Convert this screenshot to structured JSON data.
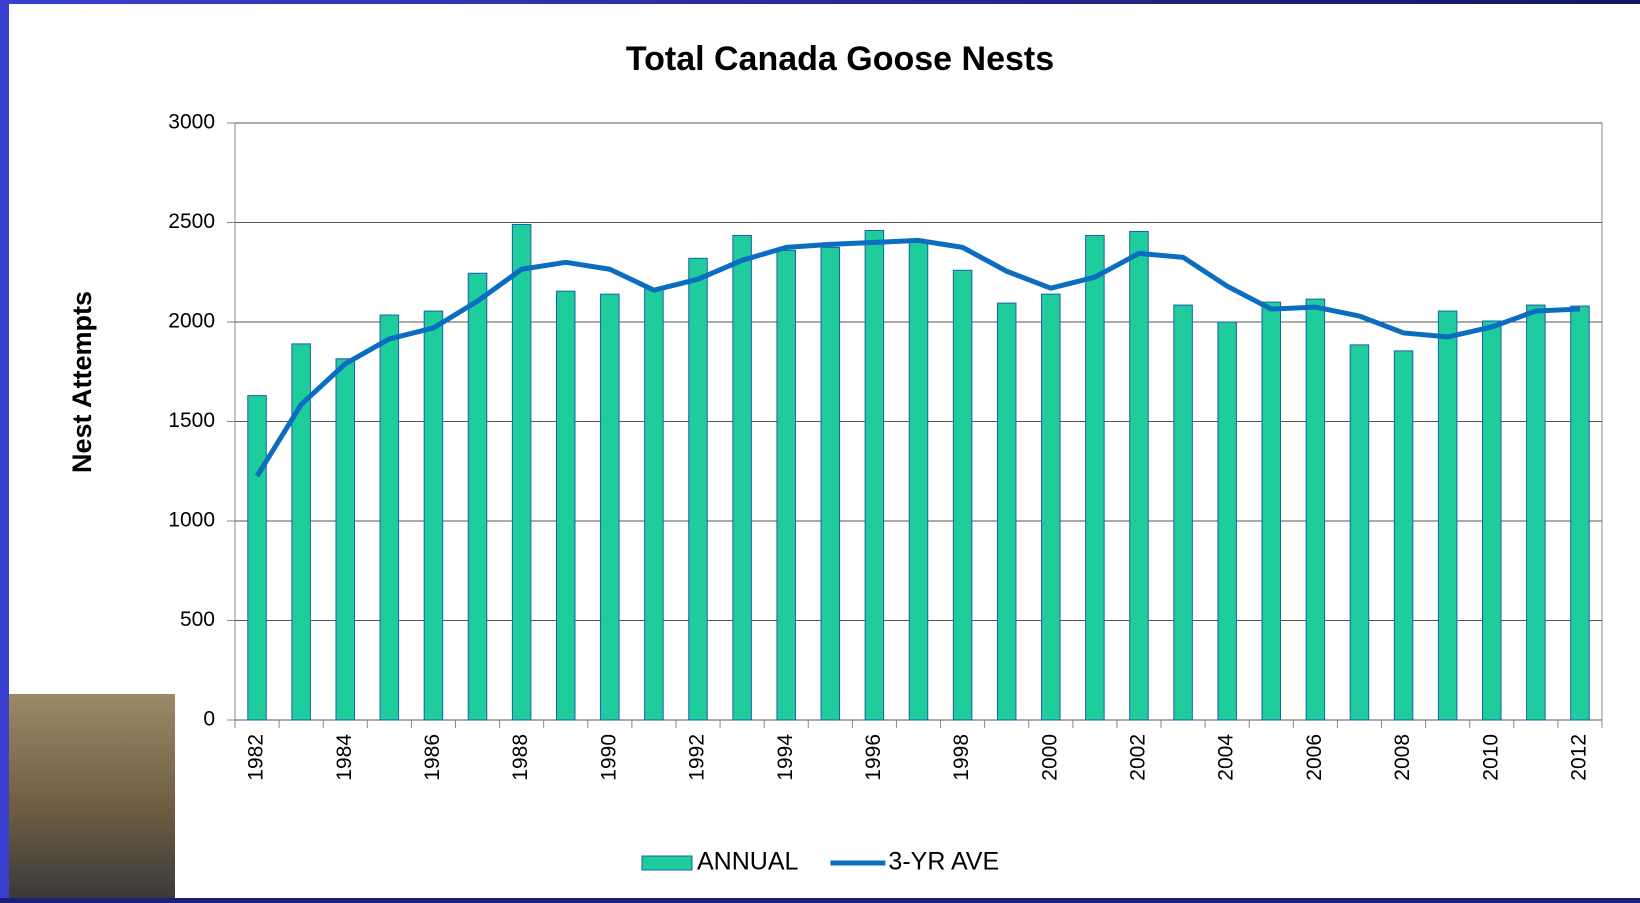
{
  "chart_data": {
    "type": "bar",
    "title": "Total Canada Goose Nests",
    "y_label": "Nest Attempts",
    "categories": [
      "1982",
      null,
      "1984",
      null,
      "1986",
      null,
      "1988",
      null,
      "1990",
      null,
      "1992",
      null,
      "1994",
      null,
      "1996",
      null,
      "1998",
      null,
      "2000",
      null,
      "2002",
      null,
      "2004",
      null,
      "2006",
      null,
      "2008",
      null,
      "2010",
      null,
      "2012"
    ],
    "series": [
      {
        "name": "ANNUAL",
        "type": "bar",
        "color": "#1fcc9c",
        "values": [
          1630,
          1890,
          1815,
          2035,
          2055,
          2245,
          2490,
          2155,
          2140,
          2165,
          2320,
          2435,
          2360,
          2375,
          2460,
          2400,
          2260,
          2095,
          2140,
          2435,
          2455,
          2085,
          2000,
          2100,
          2115,
          1885,
          1855,
          2055,
          2005,
          2085,
          2080
        ]
      },
      {
        "name": "3-YR AVE",
        "type": "line",
        "color": "#0a6dc0",
        "values": [
          1225,
          1585,
          1790,
          1915,
          1970,
          2105,
          2265,
          2300,
          2265,
          2160,
          2215,
          2310,
          2375,
          2390,
          2400,
          2410,
          2375,
          2255,
          2170,
          2225,
          2345,
          2325,
          2180,
          2065,
          2075,
          2030,
          1945,
          1925,
          1975,
          2055,
          2065
        ]
      }
    ],
    "ylim": [
      0,
      3000
    ],
    "yticks": [
      0,
      500,
      1000,
      1500,
      2000,
      2500,
      3000
    ],
    "grid": true,
    "legend": "bottom"
  }
}
